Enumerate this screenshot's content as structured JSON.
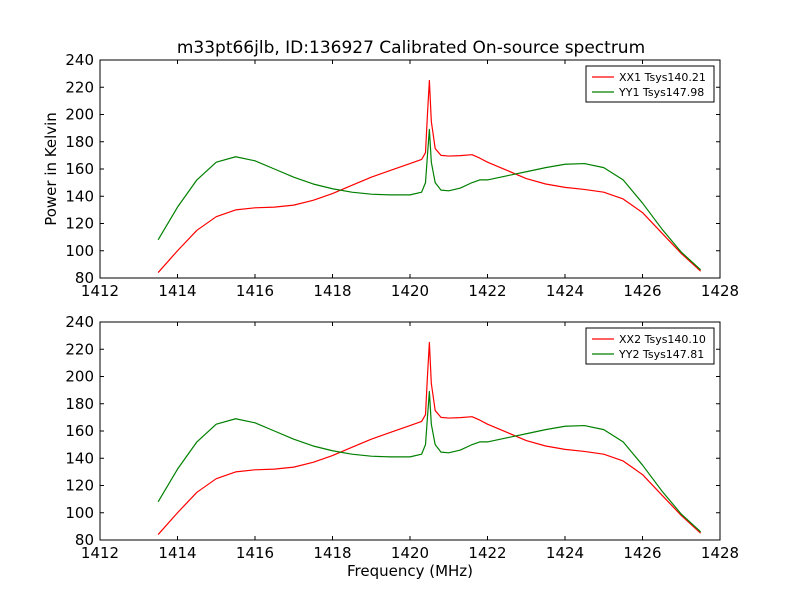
{
  "title": "m33pt66jlb, ID:136927 Calibrated On-source spectrum",
  "colors": {
    "xx": "#ff0000",
    "yy": "#008000"
  },
  "chart_data": [
    {
      "type": "line",
      "ylabel": "Power in Kelvin",
      "xlabel": "",
      "xlim": [
        1412,
        1428
      ],
      "ylim": [
        80,
        240
      ],
      "xticks": [
        "1412",
        "1414",
        "1416",
        "1418",
        "1420",
        "1422",
        "1424",
        "1426",
        "1428"
      ],
      "yticks": [
        "80",
        "100",
        "120",
        "140",
        "160",
        "180",
        "200",
        "220",
        "240"
      ],
      "legend_position": "top-right",
      "series": [
        {
          "name": "XX1 Tsys140.21",
          "color": "#ff0000",
          "x": [
            1413.5,
            1414.0,
            1414.5,
            1415.0,
            1415.5,
            1416.0,
            1416.5,
            1417.0,
            1417.5,
            1418.0,
            1418.5,
            1419.0,
            1419.5,
            1420.0,
            1420.3,
            1420.4,
            1420.45,
            1420.5,
            1420.55,
            1420.65,
            1420.8,
            1421.0,
            1421.3,
            1421.6,
            1421.8,
            1422.0,
            1422.5,
            1423.0,
            1423.5,
            1424.0,
            1424.5,
            1425.0,
            1425.5,
            1426.0,
            1426.5,
            1427.0,
            1427.5
          ],
          "y": [
            84,
            100,
            115,
            125,
            130,
            131.5,
            132,
            133.5,
            137,
            142,
            148,
            154,
            159,
            164,
            167,
            172,
            200,
            225,
            195,
            175,
            170,
            169.5,
            169.8,
            170.5,
            168,
            165,
            159,
            153,
            149,
            146.5,
            145,
            143,
            138,
            128,
            113,
            98,
            85
          ]
        },
        {
          "name": "YY1 Tsys147.98",
          "color": "#008000",
          "x": [
            1413.5,
            1414.0,
            1414.5,
            1415.0,
            1415.5,
            1416.0,
            1416.5,
            1417.0,
            1417.5,
            1418.0,
            1418.5,
            1419.0,
            1419.5,
            1420.0,
            1420.3,
            1420.4,
            1420.45,
            1420.5,
            1420.55,
            1420.65,
            1420.8,
            1421.0,
            1421.3,
            1421.6,
            1421.8,
            1422.0,
            1422.5,
            1423.0,
            1423.5,
            1424.0,
            1424.5,
            1425.0,
            1425.5,
            1426.0,
            1426.5,
            1427.0,
            1427.5
          ],
          "y": [
            108,
            132,
            152,
            165,
            169,
            166,
            160,
            154,
            149,
            145.5,
            143,
            141.5,
            141,
            141,
            143,
            150,
            170,
            189,
            165,
            150,
            144.5,
            144,
            146,
            150,
            152,
            152,
            155,
            158,
            161,
            163.5,
            164,
            161,
            152,
            135,
            116,
            99,
            86
          ]
        }
      ]
    },
    {
      "type": "line",
      "ylabel": "",
      "xlabel": "Frequency (MHz)",
      "xlim": [
        1412,
        1428
      ],
      "ylim": [
        80,
        240
      ],
      "xticks": [
        "1412",
        "1414",
        "1416",
        "1418",
        "1420",
        "1422",
        "1424",
        "1426",
        "1428"
      ],
      "yticks": [
        "80",
        "100",
        "120",
        "140",
        "160",
        "180",
        "200",
        "220",
        "240"
      ],
      "legend_position": "top-right",
      "series": [
        {
          "name": "XX2 Tsys140.10",
          "color": "#ff0000",
          "x": [
            1413.5,
            1414.0,
            1414.5,
            1415.0,
            1415.5,
            1416.0,
            1416.5,
            1417.0,
            1417.5,
            1418.0,
            1418.5,
            1419.0,
            1419.5,
            1420.0,
            1420.3,
            1420.4,
            1420.45,
            1420.5,
            1420.55,
            1420.65,
            1420.8,
            1421.0,
            1421.3,
            1421.6,
            1421.8,
            1422.0,
            1422.5,
            1423.0,
            1423.5,
            1424.0,
            1424.5,
            1425.0,
            1425.5,
            1426.0,
            1426.5,
            1427.0,
            1427.5
          ],
          "y": [
            84,
            100,
            115,
            125,
            130,
            131.5,
            132,
            133.5,
            137,
            142,
            148,
            154,
            159,
            164,
            167,
            172,
            200,
            225,
            195,
            175,
            170,
            169.5,
            169.8,
            170.5,
            168,
            165,
            159,
            153,
            149,
            146.5,
            145,
            143,
            138,
            128,
            113,
            98,
            85
          ]
        },
        {
          "name": "YY2 Tsys147.81",
          "color": "#008000",
          "x": [
            1413.5,
            1414.0,
            1414.5,
            1415.0,
            1415.5,
            1416.0,
            1416.5,
            1417.0,
            1417.5,
            1418.0,
            1418.5,
            1419.0,
            1419.5,
            1420.0,
            1420.3,
            1420.4,
            1420.45,
            1420.5,
            1420.55,
            1420.65,
            1420.8,
            1421.0,
            1421.3,
            1421.6,
            1421.8,
            1422.0,
            1422.5,
            1423.0,
            1423.5,
            1424.0,
            1424.5,
            1425.0,
            1425.5,
            1426.0,
            1426.5,
            1427.0,
            1427.5
          ],
          "y": [
            108,
            132,
            152,
            165,
            169,
            166,
            160,
            154,
            149,
            145.5,
            143,
            141.5,
            141,
            141,
            143,
            150,
            170,
            189,
            165,
            150,
            144.5,
            144,
            146,
            150,
            152,
            152,
            155,
            158,
            161,
            163.5,
            164,
            161,
            152,
            135,
            116,
            99,
            86
          ]
        }
      ]
    }
  ]
}
